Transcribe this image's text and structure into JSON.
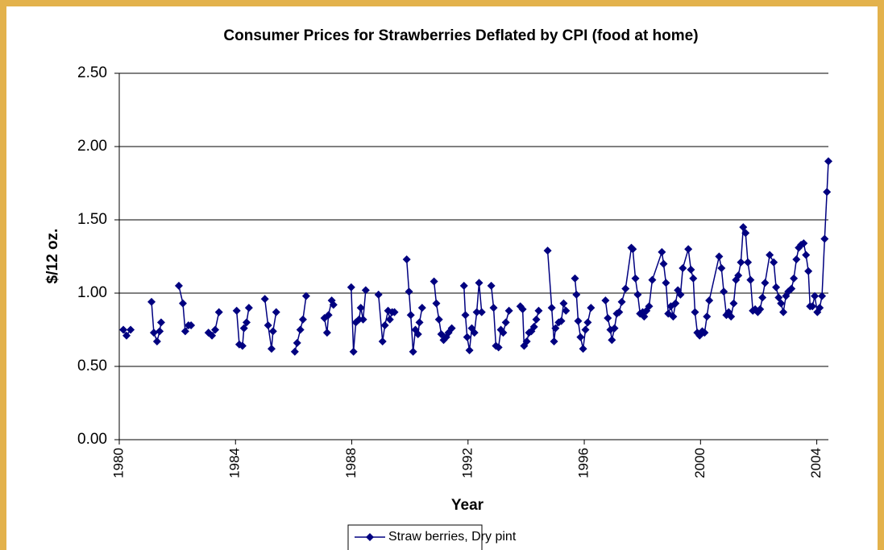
{
  "chart_data": {
    "type": "line",
    "title": "Consumer Prices for Strawberries Deflated by CPI (food at home)",
    "x_label": "Year",
    "y_label": "$/12 oz.",
    "xlim": [
      1980,
      2004.4
    ],
    "xticks": [
      1980,
      1984,
      1988,
      1992,
      1996,
      2000,
      2004
    ],
    "ylim": [
      0,
      2.5
    ],
    "yticks": [
      {
        "value": 0,
        "label": "0.00"
      },
      {
        "value": 0.5,
        "label": "0.50"
      },
      {
        "value": 1,
        "label": "1.00"
      },
      {
        "value": 1.5,
        "label": "1.50"
      },
      {
        "value": 2,
        "label": "2.00"
      },
      {
        "value": 2.5,
        "label": "2.50"
      }
    ],
    "grid": true,
    "legend": "bottom",
    "x": [
      1980.14,
      1980.25,
      1980.39,
      1980.7,
      1981.11,
      1981.19,
      1981.3,
      1981.39,
      1981.44,
      1981.7,
      1982.05,
      1982.19,
      1982.27,
      1982.38,
      1982.47,
      1982.7,
      1983.07,
      1983.19,
      1983.3,
      1983.43,
      1983.7,
      1984.04,
      1984.13,
      1984.24,
      1984.29,
      1984.38,
      1984.46,
      1984.7,
      1985.01,
      1985.12,
      1985.24,
      1985.29,
      1985.4,
      1985.7,
      1986.04,
      1986.12,
      1986.23,
      1986.32,
      1986.43,
      1986.7,
      1987.06,
      1987.15,
      1987.2,
      1987.31,
      1987.37,
      1987.7,
      1987.98,
      1988.06,
      1988.14,
      1988.25,
      1988.31,
      1988.39,
      1988.48,
      1988.7,
      1988.92,
      1989.06,
      1989.14,
      1989.25,
      1989.31,
      1989.39,
      1989.47,
      1989.7,
      1989.89,
      1989.97,
      1990.03,
      1990.11,
      1990.19,
      1990.28,
      1990.33,
      1990.42,
      1990.6,
      1990.83,
      1990.91,
      1991.0,
      1991.08,
      1991.16,
      1991.25,
      1991.33,
      1991.44,
      1991.7,
      1991.86,
      1991.91,
      1991.97,
      1992.05,
      1992.13,
      1992.22,
      1992.3,
      1992.38,
      1992.47,
      1992.7,
      1992.8,
      1992.88,
      1992.96,
      1993.05,
      1993.13,
      1993.21,
      1993.3,
      1993.41,
      1993.6,
      1993.8,
      1993.88,
      1993.93,
      1994.02,
      1994.1,
      1994.18,
      1994.27,
      1994.35,
      1994.43,
      1994.6,
      1994.74,
      1994.88,
      1994.96,
      1995.01,
      1995.12,
      1995.21,
      1995.29,
      1995.37,
      1995.55,
      1995.68,
      1995.73,
      1995.79,
      1995.87,
      1995.96,
      1996.04,
      1996.12,
      1996.23,
      1996.4,
      1996.73,
      1996.81,
      1996.9,
      1996.95,
      1997.04,
      1997.12,
      1997.2,
      1997.29,
      1997.42,
      1997.62,
      1997.67,
      1997.76,
      1997.84,
      1997.92,
      1998.01,
      1998.06,
      1998.14,
      1998.23,
      1998.34,
      1998.67,
      1998.73,
      1998.81,
      1998.89,
      1998.98,
      1999.06,
      1999.14,
      1999.22,
      1999.31,
      1999.39,
      1999.58,
      1999.67,
      1999.75,
      1999.81,
      1999.89,
      1999.97,
      2000.06,
      2000.14,
      2000.22,
      2000.3,
      2000.64,
      2000.72,
      2000.8,
      2000.89,
      2000.97,
      2001.05,
      2001.14,
      2001.22,
      2001.3,
      2001.39,
      2001.47,
      2001.55,
      2001.63,
      2001.72,
      2001.8,
      2001.88,
      2001.97,
      2002.05,
      2002.13,
      2002.22,
      2002.38,
      2002.52,
      2002.6,
      2002.69,
      2002.77,
      2002.85,
      2002.94,
      2003.02,
      2003.13,
      2003.21,
      2003.3,
      2003.38,
      2003.46,
      2003.55,
      2003.63,
      2003.71,
      2003.77,
      2003.85,
      2003.93,
      2004.02,
      2004.1,
      2004.18,
      2004.27,
      2004.35,
      2004.4
    ],
    "series": [
      {
        "name": "Straw berries, Dry pint",
        "color": "#000080",
        "values": [
          0.75,
          0.71,
          0.75,
          null,
          0.94,
          0.73,
          0.67,
          0.74,
          0.8,
          null,
          1.05,
          0.93,
          0.74,
          0.78,
          0.78,
          null,
          0.73,
          0.71,
          0.75,
          0.87,
          null,
          0.88,
          0.65,
          0.64,
          0.76,
          0.8,
          0.9,
          null,
          0.96,
          0.78,
          0.62,
          0.74,
          0.87,
          null,
          0.6,
          0.66,
          0.75,
          0.82,
          0.98,
          null,
          0.83,
          0.73,
          0.85,
          0.95,
          0.92,
          null,
          1.04,
          0.6,
          0.8,
          0.82,
          0.9,
          0.82,
          1.02,
          null,
          0.99,
          0.67,
          0.78,
          0.88,
          0.82,
          0.87,
          0.87,
          null,
          1.23,
          1.01,
          0.85,
          0.6,
          0.75,
          0.72,
          0.8,
          0.9,
          null,
          1.08,
          0.93,
          0.82,
          0.72,
          0.68,
          0.7,
          0.73,
          0.76,
          null,
          1.05,
          0.85,
          0.7,
          0.61,
          0.76,
          0.73,
          0.87,
          1.07,
          0.87,
          null,
          1.05,
          0.9,
          0.64,
          0.63,
          0.75,
          0.73,
          0.8,
          0.88,
          null,
          0.91,
          0.89,
          0.64,
          0.67,
          0.73,
          0.74,
          0.77,
          0.82,
          0.88,
          null,
          1.29,
          0.9,
          0.67,
          0.76,
          0.8,
          0.81,
          0.93,
          0.88,
          null,
          1.1,
          0.99,
          0.81,
          0.7,
          0.62,
          0.75,
          0.8,
          0.9,
          null,
          0.95,
          0.83,
          0.75,
          0.68,
          0.76,
          0.86,
          0.87,
          0.94,
          1.03,
          1.31,
          1.3,
          1.1,
          0.99,
          0.86,
          0.87,
          0.84,
          0.88,
          0.91,
          1.09,
          1.28,
          1.2,
          1.07,
          0.86,
          0.91,
          0.84,
          0.93,
          1.02,
          0.99,
          1.17,
          1.3,
          1.16,
          1.1,
          0.87,
          0.73,
          0.71,
          0.74,
          0.73,
          0.84,
          0.95,
          1.25,
          1.17,
          1.01,
          0.85,
          0.87,
          0.84,
          0.93,
          1.09,
          1.12,
          1.21,
          1.45,
          1.41,
          1.21,
          1.09,
          0.88,
          0.89,
          0.87,
          0.89,
          0.97,
          1.07,
          1.26,
          1.21,
          1.04,
          0.97,
          0.93,
          0.87,
          0.98,
          1.01,
          1.03,
          1.1,
          1.23,
          1.31,
          1.33,
          1.34,
          1.26,
          1.15,
          0.91,
          0.91,
          0.98,
          0.87,
          0.9,
          0.98,
          1.37,
          1.69,
          1.9
        ]
      }
    ]
  }
}
